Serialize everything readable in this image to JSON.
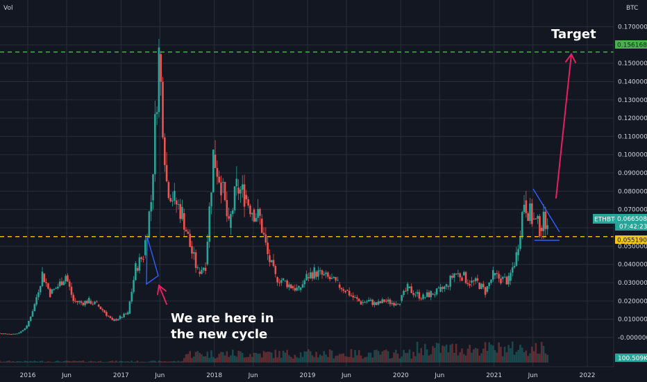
{
  "header": {
    "vol_label": "Vol",
    "currency_label": "BTC"
  },
  "colors": {
    "background": "#131722",
    "grid": "#2a2e39",
    "up": "#26a69a",
    "down": "#ef5350",
    "target_line": "#4caf50",
    "support_line": "#f5c518",
    "annotation": "#e91e63",
    "pattern": "#2962ff"
  },
  "annotations": {
    "target": "Target",
    "cycle_line1": "We are here in",
    "cycle_line2": "the new cycle"
  },
  "price_tags": {
    "target": "0.156168",
    "ticker": "ETHBTC",
    "current": "0.066508",
    "countdown": "07:42:23",
    "support": "0.055190",
    "volume": "100.509K"
  },
  "chart_data": {
    "type": "line",
    "title": "",
    "xlabel": "",
    "ylabel": "",
    "x_tick_labels": [
      "2016",
      "Jun",
      "2017",
      "Jun",
      "2018",
      "Jun",
      "2019",
      "Jun",
      "2020",
      "Jun",
      "2021",
      "Jun",
      "2022"
    ],
    "y_tick_labels": [
      "0.170000",
      "0.160000",
      "0.150000",
      "0.140000",
      "0.130000",
      "0.120000",
      "0.110000",
      "0.100000",
      "0.090000",
      "0.080000",
      "0.070000",
      "0.060000",
      "0.050000",
      "0.040000",
      "0.030000",
      "0.020000",
      "0.010000",
      "-0.000000"
    ],
    "ylim": [
      0.0,
      0.17
    ],
    "series": [
      {
        "values": [
          {
            "x": "2015-08",
            "y": 0.003
          },
          {
            "x": "2015-09",
            "y": 0.0025
          },
          {
            "x": "2015-10",
            "y": 0.0022
          },
          {
            "x": "2015-11",
            "y": 0.0018
          },
          {
            "x": "2015-12",
            "y": 0.0025
          },
          {
            "x": "2016-01",
            "y": 0.006
          },
          {
            "x": "2016-02",
            "y": 0.018
          },
          {
            "x": "2016-03",
            "y": 0.035
          },
          {
            "x": "2016-04",
            "y": 0.024
          },
          {
            "x": "2016-05",
            "y": 0.028
          },
          {
            "x": "2016-06",
            "y": 0.034
          },
          {
            "x": "2016-07",
            "y": 0.02
          },
          {
            "x": "2016-08",
            "y": 0.019
          },
          {
            "x": "2016-09",
            "y": 0.02
          },
          {
            "x": "2016-10",
            "y": 0.018
          },
          {
            "x": "2016-11",
            "y": 0.014
          },
          {
            "x": "2016-12",
            "y": 0.009
          },
          {
            "x": "2017-01",
            "y": 0.011
          },
          {
            "x": "2017-02",
            "y": 0.013
          },
          {
            "x": "2017-03",
            "y": 0.038
          },
          {
            "x": "2017-04",
            "y": 0.045
          },
          {
            "x": "2017-05",
            "y": 0.075
          },
          {
            "x": "2017-06",
            "y": 0.155
          },
          {
            "x": "2017-07",
            "y": 0.085
          },
          {
            "x": "2017-08",
            "y": 0.075
          },
          {
            "x": "2017-09",
            "y": 0.068
          },
          {
            "x": "2017-10",
            "y": 0.05
          },
          {
            "x": "2017-11",
            "y": 0.036
          },
          {
            "x": "2017-12",
            "y": 0.04
          },
          {
            "x": "2018-01",
            "y": 0.1
          },
          {
            "x": "2018-02",
            "y": 0.085
          },
          {
            "x": "2018-03",
            "y": 0.06
          },
          {
            "x": "2018-04",
            "y": 0.082
          },
          {
            "x": "2018-05",
            "y": 0.078
          },
          {
            "x": "2018-06",
            "y": 0.07
          },
          {
            "x": "2018-07",
            "y": 0.065
          },
          {
            "x": "2018-08",
            "y": 0.045
          },
          {
            "x": "2018-09",
            "y": 0.033
          },
          {
            "x": "2018-10",
            "y": 0.031
          },
          {
            "x": "2018-11",
            "y": 0.028
          },
          {
            "x": "2018-12",
            "y": 0.026
          },
          {
            "x": "2019-01",
            "y": 0.033
          },
          {
            "x": "2019-02",
            "y": 0.036
          },
          {
            "x": "2019-03",
            "y": 0.034
          },
          {
            "x": "2019-04",
            "y": 0.032
          },
          {
            "x": "2019-05",
            "y": 0.029
          },
          {
            "x": "2019-06",
            "y": 0.026
          },
          {
            "x": "2019-07",
            "y": 0.022
          },
          {
            "x": "2019-08",
            "y": 0.019
          },
          {
            "x": "2019-09",
            "y": 0.02
          },
          {
            "x": "2019-10",
            "y": 0.018
          },
          {
            "x": "2019-11",
            "y": 0.02
          },
          {
            "x": "2019-12",
            "y": 0.019
          },
          {
            "x": "2020-01",
            "y": 0.02
          },
          {
            "x": "2020-02",
            "y": 0.027
          },
          {
            "x": "2020-03",
            "y": 0.024
          },
          {
            "x": "2020-04",
            "y": 0.022
          },
          {
            "x": "2020-05",
            "y": 0.024
          },
          {
            "x": "2020-06",
            "y": 0.025
          },
          {
            "x": "2020-07",
            "y": 0.028
          },
          {
            "x": "2020-08",
            "y": 0.035
          },
          {
            "x": "2020-09",
            "y": 0.034
          },
          {
            "x": "2020-10",
            "y": 0.03
          },
          {
            "x": "2020-11",
            "y": 0.03
          },
          {
            "x": "2020-12",
            "y": 0.025
          },
          {
            "x": "2021-01",
            "y": 0.034
          },
          {
            "x": "2021-02",
            "y": 0.032
          },
          {
            "x": "2021-03",
            "y": 0.031
          },
          {
            "x": "2021-04",
            "y": 0.045
          },
          {
            "x": "2021-05",
            "y": 0.075
          },
          {
            "x": "2021-06",
            "y": 0.065
          },
          {
            "x": "2021-07",
            "y": 0.06
          },
          {
            "x": "2021-08",
            "y": 0.066508
          }
        ]
      }
    ],
    "horizontal_lines": [
      {
        "value": 0.156168,
        "style": "dashed",
        "color": "#4caf50"
      },
      {
        "value": 0.05519,
        "style": "dashed",
        "color": "#f5c518"
      }
    ],
    "grid": true,
    "volume_shown": true,
    "candlestick_style": true,
    "x_axis_range": [
      "2015-08",
      "2022-02"
    ]
  }
}
